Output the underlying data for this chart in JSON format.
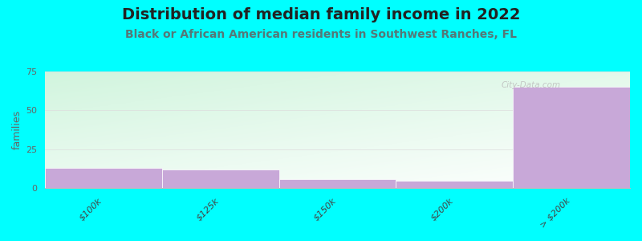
{
  "title": "Distribution of median family income in 2022",
  "subtitle": "Black or African American residents in Southwest Ranches, FL",
  "categories": [
    "$100k",
    "$125k",
    "$150k",
    "$200k",
    "> $200k"
  ],
  "values": [
    13,
    12,
    6,
    5,
    65
  ],
  "bar_color": "#c8a8d8",
  "bar_edge_color": "#c8a8d8",
  "bg_color_topleft": "#b8eec8",
  "bg_color_center": "#f0fff4",
  "bg_color_right": "#f8f8ff",
  "background_color": "#00ffff",
  "title_color": "#222222",
  "subtitle_color": "#557777",
  "ylabel": "families",
  "ylim": [
    0,
    75
  ],
  "yticks": [
    0,
    25,
    50,
    75
  ],
  "grid_color": "#dddddd",
  "watermark": "City-Data.com",
  "title_fontsize": 14,
  "subtitle_fontsize": 10,
  "tick_fontsize": 8,
  "ylabel_fontsize": 9
}
